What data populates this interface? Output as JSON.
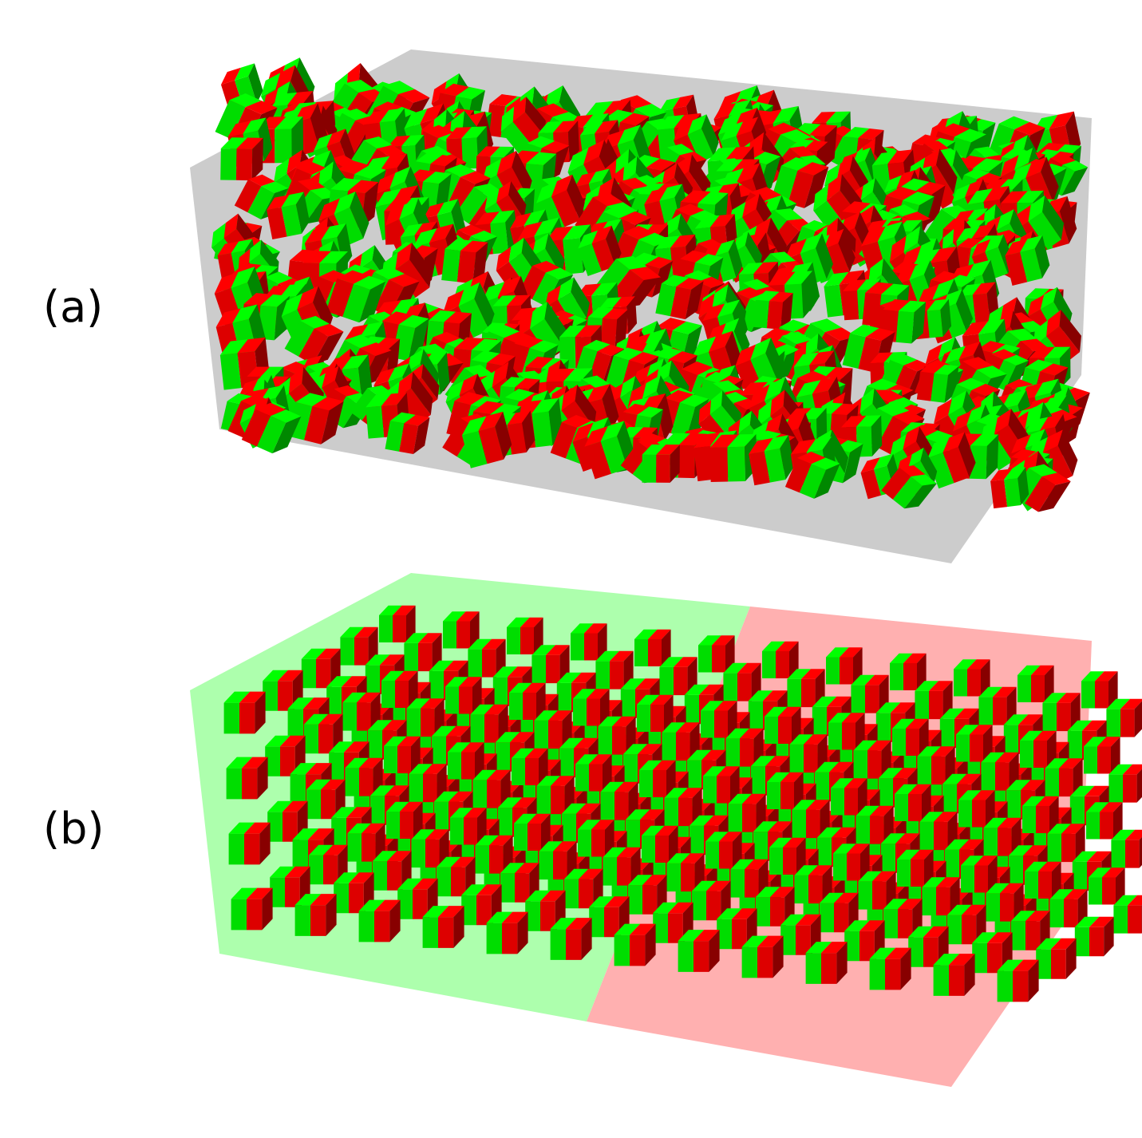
{
  "panels": [
    {
      "label": "(a)",
      "state": "disordered",
      "container_color": "#cccccc"
    },
    {
      "label": "(b)",
      "state": "ordered",
      "container_colors": {
        "left": "#adffad",
        "right": "#ffb0b0"
      }
    }
  ],
  "cube_colors": {
    "green": {
      "top": "#00ff00",
      "front": "#00dd00",
      "side": "#008800"
    },
    "red": {
      "top": "#ff0000",
      "front": "#dd0000",
      "side": "#880000"
    }
  }
}
